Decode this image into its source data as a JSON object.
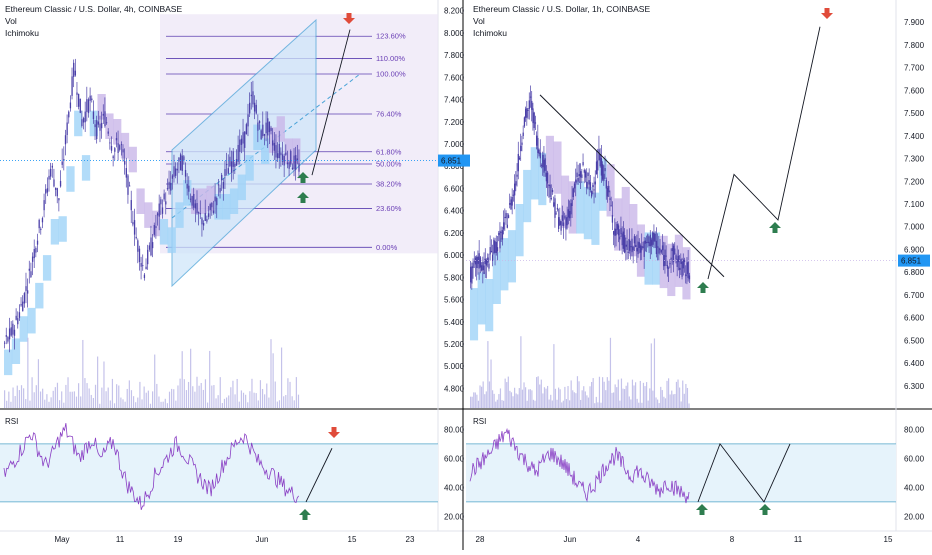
{
  "colors": {
    "candle": "#4a3fa8",
    "cloud_bull": "#9fd3f7",
    "cloud_bear": "#c9b6e8",
    "volume": "#c4c2ea",
    "rsi_line": "#8a3fc4",
    "rsi_band": "#e6f3fb",
    "rsi_level": "#4fa3c7",
    "fib_line": "#5b3fb0",
    "fib_zone": "#ece6f6",
    "channel": "#4aa3d8",
    "channel_fill": "#cfe6fa",
    "trendline": "#131722",
    "price_badge": "#2196f3",
    "arrow_up": "#2e7d4f",
    "arrow_down": "#e04b3a",
    "grid": "#e0e3eb",
    "divider": "#000000"
  },
  "chart_data": [
    {
      "type": "candlestick",
      "id": "left",
      "title": "Ethereum Classic / U.S. Dollar, 4h, COINBASE",
      "indicators": [
        "Vol",
        "Ichimoku"
      ],
      "y_ticks": [
        "8.200",
        "8.000",
        "7.800",
        "7.600",
        "7.400",
        "7.200",
        "7.000",
        "6.800",
        "6.600",
        "6.400",
        "6.200",
        "6.000",
        "5.800",
        "5.600",
        "5.400",
        "5.200",
        "5.000",
        "4.800"
      ],
      "y_tick_values": [
        8.2,
        8.0,
        7.8,
        7.6,
        7.4,
        7.2,
        7.0,
        6.8,
        6.6,
        6.4,
        6.2,
        6.0,
        5.8,
        5.6,
        5.4,
        5.2,
        5.0,
        4.8
      ],
      "ylim": [
        4.66,
        8.26
      ],
      "x_ticks": [
        "May",
        "11",
        "19",
        "Jun",
        "15",
        "23"
      ],
      "current_price": "6.851",
      "current_price_value": 6.851,
      "fib_levels": [
        {
          "label": "123.60%",
          "price": 7.97
        },
        {
          "label": "110.00%",
          "price": 7.77
        },
        {
          "label": "100.00%",
          "price": 7.63
        },
        {
          "label": "76.40%",
          "price": 7.27
        },
        {
          "label": "61.80%",
          "price": 6.93
        },
        {
          "label": "50.00%",
          "price": 6.82
        },
        {
          "label": "38.20%",
          "price": 6.64
        },
        {
          "label": "23.60%",
          "price": 6.42
        },
        {
          "label": "0.00%",
          "price": 6.07
        }
      ],
      "price_series": [
        5.2,
        5.3,
        5.5,
        5.75,
        6.1,
        6.4,
        6.8,
        6.5,
        7.1,
        7.7,
        7.2,
        7.4,
        7.1,
        7.25,
        6.95,
        7.0,
        6.6,
        6.15,
        5.85,
        6.1,
        6.4,
        6.55,
        6.75,
        6.85,
        6.55,
        6.35,
        6.3,
        6.45,
        6.65,
        6.8,
        6.9,
        7.05,
        7.45,
        7.1,
        7.15,
        6.95,
        6.9,
        6.85,
        6.8
      ],
      "projection": [
        6.72,
        8.03
      ],
      "rsi": {
        "label": "RSI",
        "ticks": [
          "80.00",
          "60.00",
          "40.00",
          "20.00"
        ],
        "tick_values": [
          80,
          60,
          40,
          20
        ],
        "levels": [
          70,
          30
        ],
        "ylim": [
          12,
          92
        ],
        "series": [
          48,
          55,
          62,
          70,
          78,
          66,
          55,
          62,
          73,
          80,
          70,
          60,
          68,
          74,
          58,
          66,
          72,
          55,
          42,
          35,
          28,
          36,
          48,
          55,
          62,
          70,
          66,
          58,
          50,
          44,
          38,
          46,
          56,
          64,
          72,
          76,
          68,
          58,
          54,
          50,
          45,
          40,
          36,
          34
        ],
        "projection": [
          30,
          67
        ]
      }
    },
    {
      "type": "candlestick",
      "id": "right",
      "title": "Ethereum Classic / U.S. Dollar, 1h, COINBASE",
      "indicators": [
        "Vol",
        "Ichimoku"
      ],
      "y_ticks": [
        "7.900",
        "7.800",
        "7.700",
        "7.600",
        "7.500",
        "7.400",
        "7.300",
        "7.200",
        "7.100",
        "7.000",
        "6.900",
        "6.800",
        "6.700",
        "6.600",
        "6.500",
        "6.400",
        "6.300"
      ],
      "y_tick_values": [
        7.9,
        7.8,
        7.7,
        7.6,
        7.5,
        7.4,
        7.3,
        7.2,
        7.1,
        7.0,
        6.9,
        6.8,
        6.7,
        6.6,
        6.5,
        6.4,
        6.3
      ],
      "ylim": [
        6.22,
        7.98
      ],
      "x_ticks": [
        "28",
        "Jun",
        "4",
        "8",
        "11",
        "15"
      ],
      "current_price": "6.851",
      "current_price_value": 6.851,
      "price_series": [
        6.78,
        6.85,
        6.82,
        6.9,
        6.95,
        7.05,
        7.2,
        7.45,
        7.55,
        7.35,
        7.25,
        7.1,
        7.0,
        7.05,
        7.2,
        7.25,
        7.15,
        7.3,
        7.2,
        7.0,
        6.95,
        6.9,
        6.92,
        6.9,
        6.95,
        6.9,
        6.85,
        6.88,
        6.82,
        6.8
      ],
      "trendline": [
        [
          0,
          7.58
        ],
        [
          1,
          6.78
        ]
      ],
      "projection": [
        6.77,
        7.23,
        7.03,
        7.88
      ],
      "rsi": {
        "label": "RSI",
        "ticks": [
          "80.00",
          "60.00",
          "40.00",
          "20.00"
        ],
        "tick_values": [
          80,
          60,
          40,
          20
        ],
        "levels": [
          70,
          30
        ],
        "ylim": [
          12,
          92
        ],
        "series": [
          50,
          55,
          60,
          65,
          72,
          78,
          70,
          62,
          56,
          50,
          58,
          64,
          60,
          55,
          48,
          40,
          36,
          42,
          50,
          58,
          62,
          55,
          48,
          52,
          46,
          42,
          38,
          44,
          40,
          36,
          34
        ],
        "projection": [
          30,
          70,
          30,
          70
        ]
      }
    }
  ]
}
